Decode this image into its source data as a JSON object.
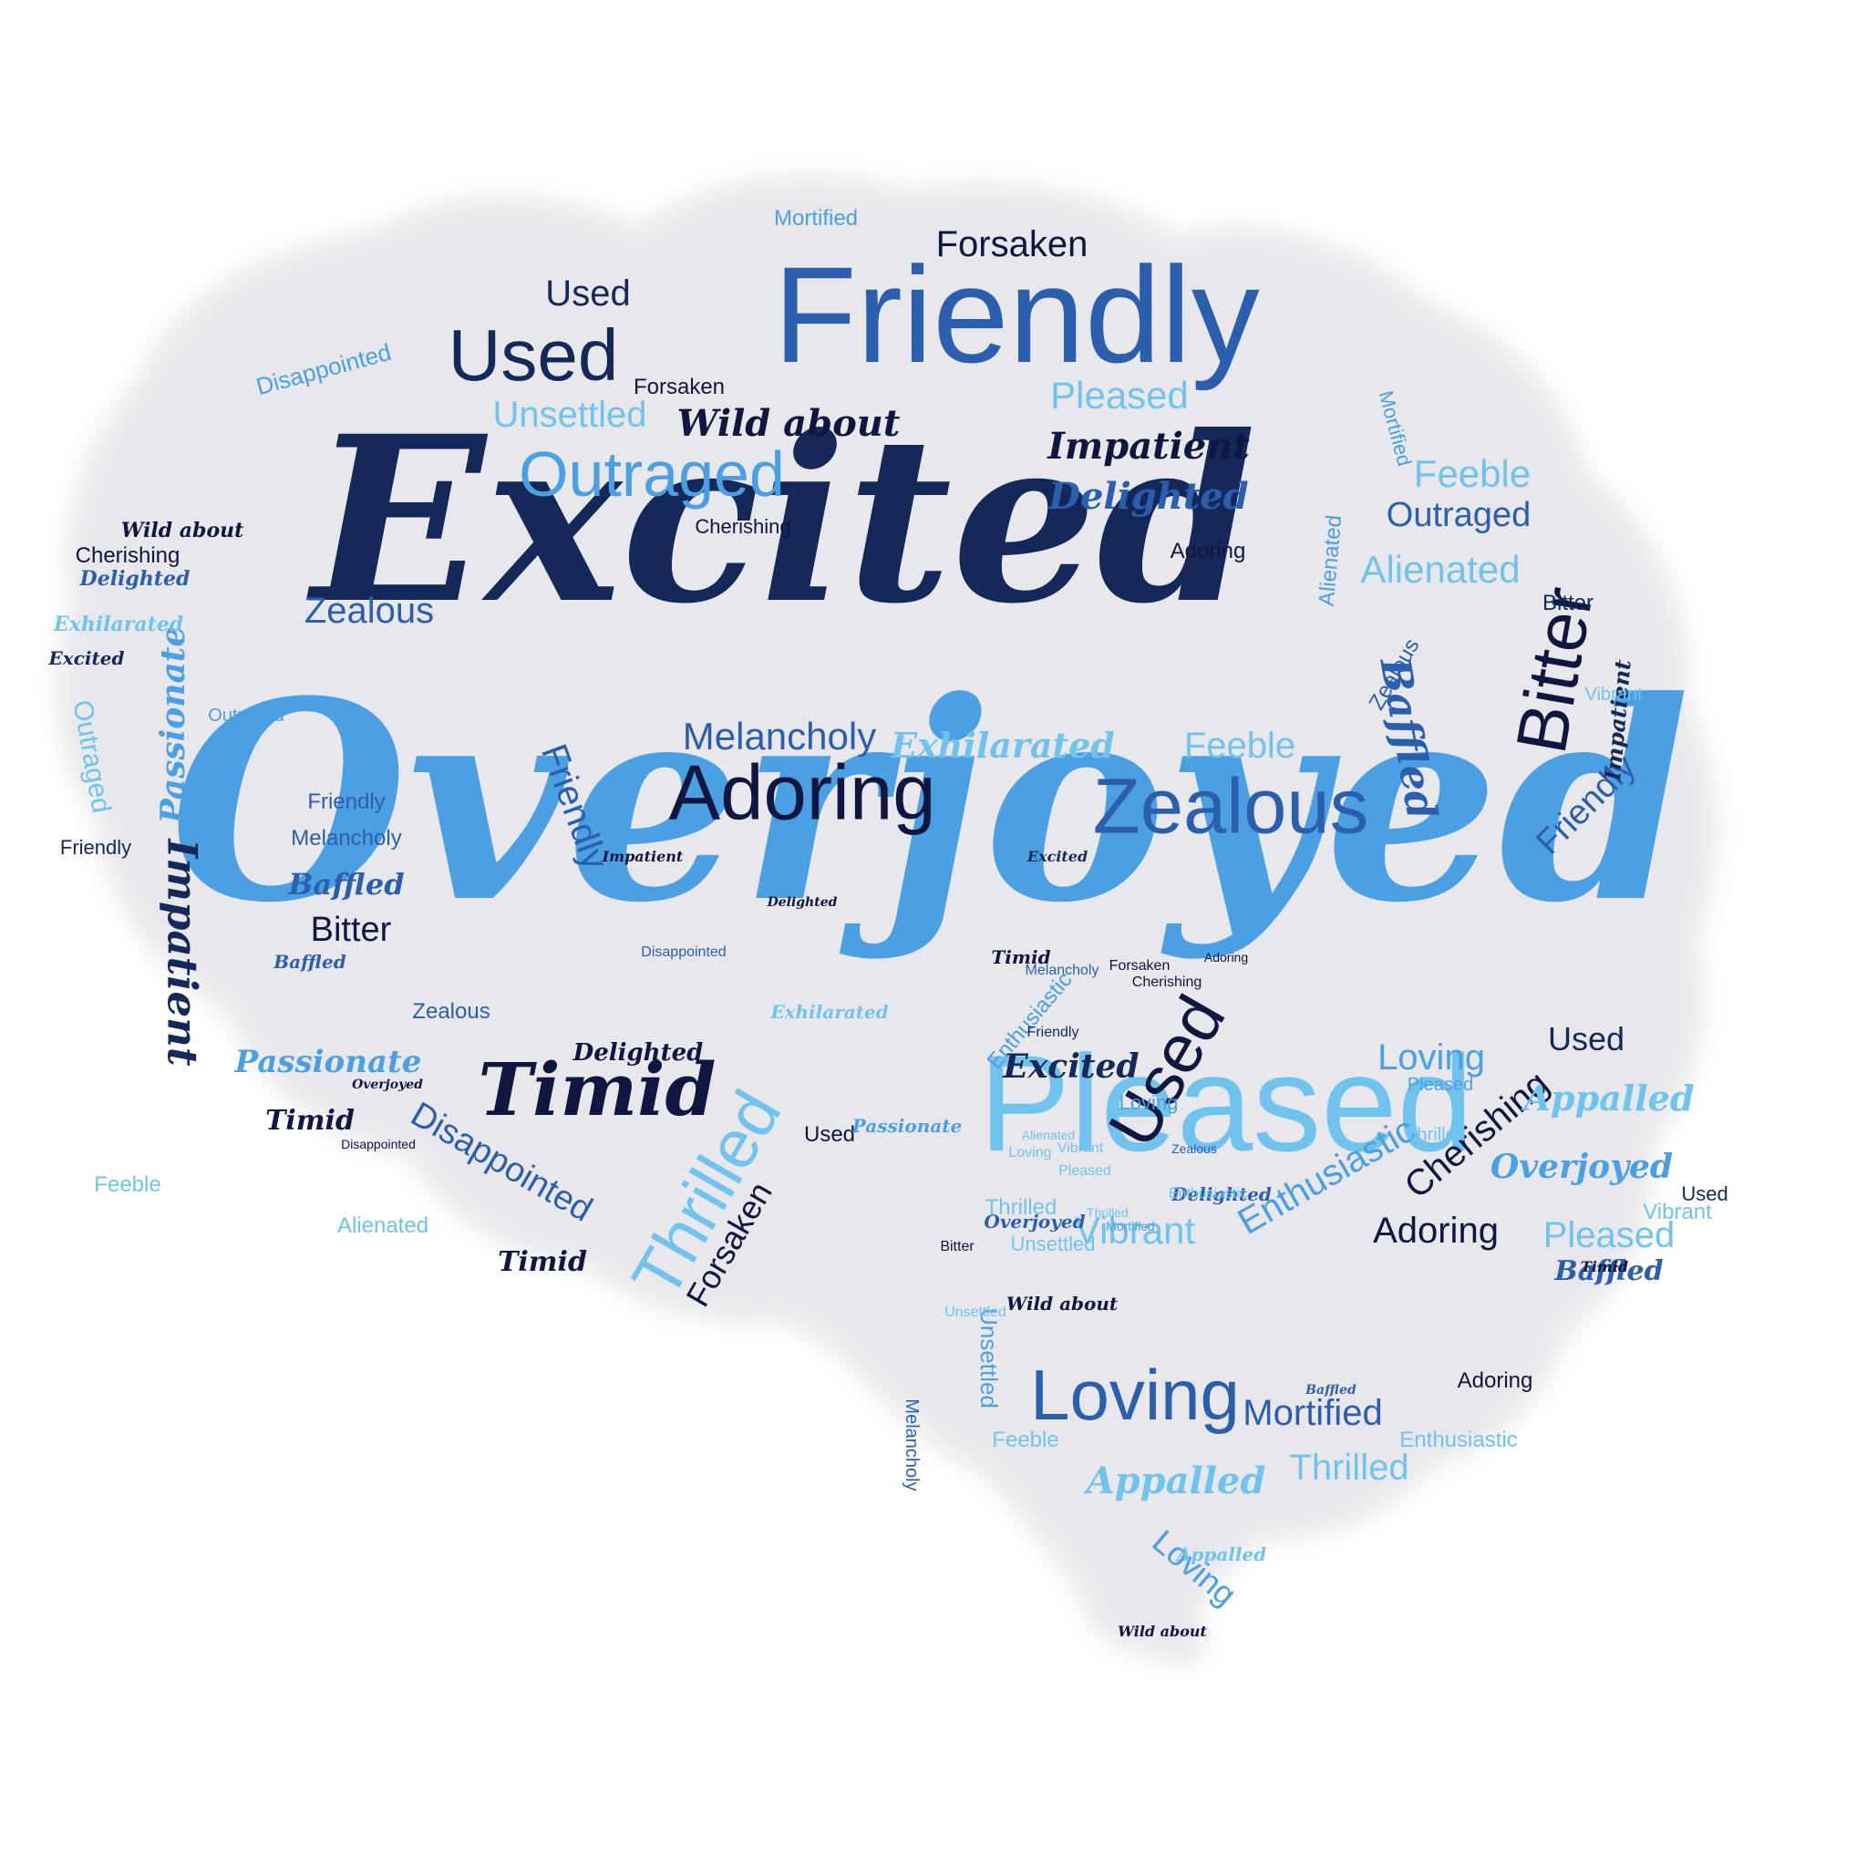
{
  "colors": {
    "background": "#ffffff",
    "brain_shape": "#e8e8ec",
    "navy": "#14285a",
    "ink": "#0f1640",
    "mid_blue": "#2b5fae",
    "sky_blue": "#4b9fe3",
    "light_blue": "#6fc3ec"
  },
  "shape": "brain",
  "words": [
    {
      "text": "Excited",
      "style": "script",
      "color": "navy",
      "level": 1.0
    },
    {
      "text": "Overjoyed",
      "style": "script",
      "color": "sky",
      "level": 1.0
    },
    {
      "text": "Friendly",
      "style": "sans",
      "color": "mid",
      "level": 0.55
    },
    {
      "text": "Pleased",
      "style": "sans",
      "color": "light",
      "level": 0.55
    },
    {
      "text": "Used",
      "style": "sans",
      "color": "navy",
      "level": 0.3
    },
    {
      "text": "Adoring",
      "style": "sans",
      "color": "ink",
      "level": 0.3
    },
    {
      "text": "Zealous",
      "style": "sans",
      "color": "mid",
      "level": 0.3
    },
    {
      "text": "Outraged",
      "style": "sans",
      "color": "sky",
      "level": 0.3
    },
    {
      "text": "Timid",
      "style": "script",
      "color": "ink",
      "level": 0.3
    },
    {
      "text": "Thrilled",
      "style": "sans",
      "color": "light",
      "level": 0.3
    },
    {
      "text": "Bitter",
      "style": "sans",
      "color": "ink",
      "level": 0.3
    },
    {
      "text": "Loving",
      "style": "sans",
      "color": "mid",
      "level": 0.28
    },
    {
      "text": "Used",
      "style": "sans",
      "color": "ink",
      "level": 0.28
    },
    {
      "text": "Baffled",
      "style": "script",
      "color": "mid",
      "level": 0.2
    },
    {
      "text": "Impatient",
      "style": "script",
      "color": "navy",
      "level": 0.2
    },
    {
      "text": "Unsettled",
      "style": "sans",
      "color": "light",
      "level": 0.15
    },
    {
      "text": "Wild about",
      "style": "script",
      "color": "ink",
      "level": 0.15
    },
    {
      "text": "Impatient",
      "style": "script",
      "color": "ink",
      "level": 0.15
    },
    {
      "text": "Delighted",
      "style": "script",
      "color": "mid",
      "level": 0.15
    },
    {
      "text": "Pleased",
      "style": "sans",
      "color": "light",
      "level": 0.15
    },
    {
      "text": "Feeble",
      "style": "sans",
      "color": "light",
      "level": 0.15
    },
    {
      "text": "Outraged",
      "style": "sans",
      "color": "mid",
      "level": 0.12
    },
    {
      "text": "Alienated",
      "style": "sans",
      "color": "light",
      "level": 0.15
    },
    {
      "text": "Melancholy",
      "style": "sans",
      "color": "mid",
      "level": 0.15
    },
    {
      "text": "Exhilarated",
      "style": "script",
      "color": "light",
      "level": 0.13
    },
    {
      "text": "Feeble",
      "style": "sans",
      "color": "light",
      "level": 0.13
    },
    {
      "text": "Zealous",
      "style": "sans",
      "color": "mid",
      "level": 0.14
    },
    {
      "text": "Forsaken",
      "style": "sans",
      "color": "ink",
      "level": 0.13
    },
    {
      "text": "Used",
      "style": "sans",
      "color": "navy",
      "level": 0.13
    },
    {
      "text": "Friendly",
      "style": "sans",
      "color": "mid",
      "level": 0.15
    },
    {
      "text": "Passionate",
      "style": "script",
      "color": "sky",
      "level": 0.13
    },
    {
      "text": "Disappointed",
      "style": "sans",
      "color": "mid",
      "level": 0.14
    },
    {
      "text": "Vibrant",
      "style": "sans",
      "color": "light",
      "level": 0.14
    },
    {
      "text": "Enthusiastic",
      "style": "sans",
      "color": "sky",
      "level": 0.14
    },
    {
      "text": "Cherishing",
      "style": "sans",
      "color": "ink",
      "level": 0.14
    },
    {
      "text": "Forsaken",
      "style": "sans",
      "color": "ink",
      "level": 0.14
    },
    {
      "text": "Adoring",
      "style": "sans",
      "color": "ink",
      "level": 0.14
    },
    {
      "text": "Pleased",
      "style": "sans",
      "color": "light",
      "level": 0.13
    },
    {
      "text": "Mortified",
      "style": "sans",
      "color": "mid",
      "level": 0.14
    },
    {
      "text": "Loving",
      "style": "sans",
      "color": "sky",
      "level": 0.13
    },
    {
      "text": "Thrilled",
      "style": "sans",
      "color": "light",
      "level": 0.13
    },
    {
      "text": "Appalled",
      "style": "script",
      "color": "light",
      "level": 0.13
    },
    {
      "text": "Appalled",
      "style": "script",
      "color": "light",
      "level": 0.12
    },
    {
      "text": "Overjoyed",
      "style": "script",
      "color": "sky",
      "level": 0.12
    },
    {
      "text": "Excited",
      "style": "script",
      "color": "navy",
      "level": 0.12
    },
    {
      "text": "Passionate",
      "style": "script",
      "color": "sky",
      "level": 0.12
    },
    {
      "text": "Delighted",
      "style": "script",
      "color": "ink",
      "level": 0.1
    },
    {
      "text": "Timid",
      "style": "script",
      "color": "ink",
      "level": 0.1
    },
    {
      "text": "Timid",
      "style": "script",
      "color": "ink",
      "level": 0.1
    },
    {
      "text": "Baffled",
      "style": "script",
      "color": "mid",
      "level": 0.1
    },
    {
      "text": "Baffled",
      "style": "script",
      "color": "mid",
      "level": 0.1
    },
    {
      "text": "Loving",
      "style": "sans",
      "color": "sky",
      "level": 0.1
    },
    {
      "text": "Loving",
      "style": "sans",
      "color": "sky",
      "level": 0.1
    },
    {
      "text": "Unsettled",
      "style": "sans",
      "color": "sky",
      "level": 0.1
    },
    {
      "text": "Used",
      "style": "sans",
      "color": "navy",
      "level": 0.1
    },
    {
      "text": "Bitter",
      "style": "sans",
      "color": "ink",
      "level": 0.1
    },
    {
      "text": "Bitter",
      "style": "sans",
      "color": "navy",
      "level": 0.07
    },
    {
      "text": "Forsaken",
      "style": "sans",
      "color": "ink",
      "level": 0.1
    },
    {
      "text": "Melancholy",
      "style": "sans",
      "color": "mid",
      "level": 0.1
    },
    {
      "text": "Mortified",
      "style": "sans",
      "color": "sky",
      "level": 0.1
    },
    {
      "text": "Cherishing",
      "style": "sans",
      "color": "ink",
      "level": 0.09
    },
    {
      "text": "Cherishing",
      "style": "sans",
      "color": "ink",
      "level": 0.09
    },
    {
      "text": "Disappointed",
      "style": "sans",
      "color": "sky",
      "level": 0.09
    },
    {
      "text": "Friendly",
      "style": "sans",
      "color": "navy",
      "level": 0.09
    },
    {
      "text": "Wild about",
      "style": "script",
      "color": "ink",
      "level": 0.09
    },
    {
      "text": "Delighted",
      "style": "script",
      "color": "mid",
      "level": 0.09
    },
    {
      "text": "Exhilarated",
      "style": "script",
      "color": "light",
      "level": 0.09
    },
    {
      "text": "Excited",
      "style": "script",
      "color": "navy",
      "level": 0.09
    },
    {
      "text": "Outraged",
      "style": "sans",
      "color": "light",
      "level": 0.09
    },
    {
      "text": "Outraged",
      "style": "sans",
      "color": "sky",
      "level": 0.09
    },
    {
      "text": "Friendly",
      "style": "sans",
      "color": "mid",
      "level": 0.09
    },
    {
      "text": "Friendly",
      "style": "sans",
      "color": "mid",
      "level": 0.09
    },
    {
      "text": "Melancholy",
      "style": "sans",
      "color": "mid",
      "level": 0.09
    },
    {
      "text": "Baffled",
      "style": "script",
      "color": "mid",
      "level": 0.09
    },
    {
      "text": "Impatient",
      "style": "script",
      "color": "navy",
      "level": 0.08
    },
    {
      "text": "Vibrant",
      "style": "sans",
      "color": "light",
      "level": 0.08
    },
    {
      "text": "Vibrant",
      "style": "sans",
      "color": "light",
      "level": 0.08
    },
    {
      "text": "Feeble",
      "style": "sans",
      "color": "light",
      "level": 0.08
    },
    {
      "text": "Feeble",
      "style": "sans",
      "color": "light",
      "level": 0.08
    },
    {
      "text": "Zealous",
      "style": "sans",
      "color": "mid",
      "level": 0.08
    },
    {
      "text": "Zealous",
      "style": "sans",
      "color": "mid",
      "level": 0.08
    },
    {
      "text": "Adoring",
      "style": "sans",
      "color": "ink",
      "level": 0.08
    },
    {
      "text": "Adoring",
      "style": "sans",
      "color": "ink",
      "level": 0.08
    },
    {
      "text": "Alienated",
      "style": "sans",
      "color": "light",
      "level": 0.08
    },
    {
      "text": "Alienated",
      "style": "sans",
      "color": "sky",
      "level": 0.08
    },
    {
      "text": "Enthusiastic",
      "style": "sans",
      "color": "sky",
      "level": 0.08
    },
    {
      "text": "Enthusiastic",
      "style": "sans",
      "color": "light",
      "level": 0.08
    },
    {
      "text": "Thrilled",
      "style": "sans",
      "color": "light",
      "level": 0.08
    },
    {
      "text": "Thrilled",
      "style": "sans",
      "color": "light",
      "level": 0.08
    },
    {
      "text": "Mortified",
      "style": "sans",
      "color": "sky",
      "level": 0.08
    },
    {
      "text": "Used",
      "style": "sans",
      "color": "ink",
      "level": 0.08
    },
    {
      "text": "Used",
      "style": "sans",
      "color": "navy",
      "level": 0.08
    },
    {
      "text": "Unsettled",
      "style": "sans",
      "color": "light",
      "level": 0.08
    },
    {
      "text": "Pleased",
      "style": "sans",
      "color": "sky",
      "level": 0.08
    },
    {
      "text": "Wild about",
      "style": "script",
      "color": "ink",
      "level": 0.07
    },
    {
      "text": "Passionate",
      "style": "script",
      "color": "sky",
      "level": 0.07
    },
    {
      "text": "Timid",
      "style": "script",
      "color": "ink",
      "level": 0.07
    },
    {
      "text": "Overjoyed",
      "style": "script",
      "color": "mid",
      "level": 0.07
    },
    {
      "text": "Appalled",
      "style": "script",
      "color": "light",
      "level": 0.07
    },
    {
      "text": "Delighted",
      "style": "script",
      "color": "mid",
      "level": 0.07
    },
    {
      "text": "Exhilarated",
      "style": "script",
      "color": "light",
      "level": 0.07
    },
    {
      "text": "Forsaken",
      "style": "sans",
      "color": "ink",
      "level": 0.07
    },
    {
      "text": "Disappointed",
      "style": "sans",
      "color": "mid",
      "level": 0.06
    },
    {
      "text": "Cherishing",
      "style": "sans",
      "color": "ink",
      "level": 0.06
    },
    {
      "text": "Melancholy",
      "style": "sans",
      "color": "mid",
      "level": 0.06
    },
    {
      "text": "Impatient",
      "style": "script",
      "color": "ink",
      "level": 0.06
    },
    {
      "text": "Excited",
      "style": "script",
      "color": "navy",
      "level": 0.06
    },
    {
      "text": "Friendly",
      "style": "sans",
      "color": "navy",
      "level": 0.06
    },
    {
      "text": "Zealous",
      "style": "sans",
      "color": "mid",
      "level": 0.06
    },
    {
      "text": "Alienated",
      "style": "sans",
      "color": "light",
      "level": 0.06
    },
    {
      "text": "Mortified",
      "style": "sans",
      "color": "sky",
      "level": 0.06
    },
    {
      "text": "Adoring",
      "style": "sans",
      "color": "ink",
      "level": 0.06
    },
    {
      "text": "Vibrant",
      "style": "sans",
      "color": "light",
      "level": 0.06
    },
    {
      "text": "Unsettled",
      "style": "sans",
      "color": "light",
      "level": 0.06
    },
    {
      "text": "Bitter",
      "style": "sans",
      "color": "ink",
      "level": 0.06
    },
    {
      "text": "Loving",
      "style": "sans",
      "color": "light",
      "level": 0.06
    },
    {
      "text": "Thrilled",
      "style": "sans",
      "color": "light",
      "level": 0.06
    },
    {
      "text": "Pleased",
      "style": "sans",
      "color": "light",
      "level": 0.06
    },
    {
      "text": "Enthusiastic",
      "style": "sans",
      "color": "light",
      "level": 0.06
    },
    {
      "text": "Disappointed",
      "style": "sans",
      "color": "ink",
      "level": 0.06
    },
    {
      "text": "Overjoyed",
      "style": "script",
      "color": "ink",
      "level": 0.05
    },
    {
      "text": "Delighted",
      "style": "script",
      "color": "ink",
      "level": 0.05
    },
    {
      "text": "Timid",
      "style": "script",
      "color": "ink",
      "level": 0.05
    },
    {
      "text": "Baffled",
      "style": "script",
      "color": "mid",
      "level": 0.05
    },
    {
      "text": "Wild about",
      "style": "script",
      "color": "ink",
      "level": 0.05
    }
  ]
}
